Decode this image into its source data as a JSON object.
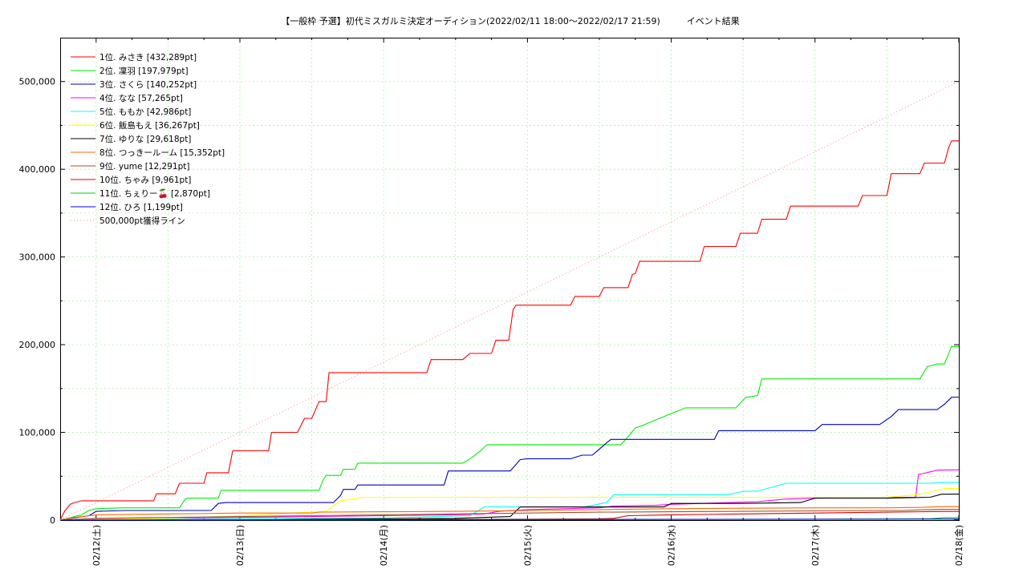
{
  "chart_data": {
    "type": "line",
    "title": "【一般枠 予選】初代ミスガルミ決定オーディション(2022/02/11 18:00～2022/02/17 21:59)　　　イベント結果",
    "xlabel": "",
    "ylabel": "",
    "x_tick_labels": [
      "02/12(土)",
      "02/13(日)",
      "02/14(月)",
      "02/15(火)",
      "02/16(水)",
      "02/17(木)",
      "02/18(金)"
    ],
    "x_range_days": [
      -0.25,
      6.0
    ],
    "ylim": [
      0,
      550000
    ],
    "y_ticks": [
      0,
      100000,
      200000,
      300000,
      400000,
      500000
    ],
    "y_tick_labels": [
      "0",
      "100,000",
      "200,000",
      "300,000",
      "400,000",
      "500,000"
    ],
    "grid": true,
    "legend_position": "top-left",
    "series": [
      {
        "name": " 1位. みさき [432,289pt]",
        "color": "#ff0000",
        "style": "solid",
        "x": [
          -0.25,
          -0.22,
          -0.18,
          -0.15,
          -0.1,
          -0.05,
          0.4,
          0.42,
          0.55,
          0.58,
          0.75,
          0.77,
          0.92,
          0.95,
          1.05,
          1.08,
          1.2,
          1.22,
          1.4,
          1.45,
          1.5,
          1.55,
          1.6,
          1.62,
          1.75,
          1.78,
          1.85,
          1.88,
          2.0,
          2.02,
          2.3,
          2.33,
          2.55,
          2.6,
          2.75,
          2.78,
          2.87,
          2.9,
          2.92,
          2.94,
          3.3,
          3.33,
          3.5,
          3.53,
          3.7,
          3.73,
          3.75,
          3.78,
          4.2,
          4.23,
          4.3,
          4.32,
          4.45,
          4.48,
          4.6,
          4.63,
          4.8,
          4.83,
          5.0,
          5.03,
          5.3,
          5.33,
          5.5,
          5.53,
          5.73,
          5.76,
          5.9,
          5.93,
          5.95,
          6.0
        ],
        "y": [
          0,
          10000,
          18000,
          20000,
          22000,
          22000,
          22000,
          30000,
          30000,
          42000,
          42000,
          54000,
          54000,
          79000,
          79000,
          79000,
          79000,
          100000,
          100000,
          116000,
          116000,
          135000,
          135000,
          168000,
          168000,
          168000,
          168000,
          168000,
          168000,
          168000,
          168000,
          183000,
          183000,
          190000,
          190000,
          205000,
          205000,
          240000,
          245000,
          245000,
          245000,
          255000,
          255000,
          265000,
          265000,
          280000,
          281000,
          295000,
          295000,
          312000,
          312000,
          312000,
          312000,
          327000,
          327000,
          343000,
          343000,
          358000,
          358000,
          358000,
          358000,
          370000,
          370000,
          395000,
          395000,
          407000,
          407000,
          425000,
          432289,
          432289
        ]
      },
      {
        "name": " 2位. 凜羽 [197,979pt]",
        "color": "#00ee00",
        "style": "solid",
        "x": [
          -0.25,
          -0.1,
          -0.05,
          0.0,
          0.2,
          0.58,
          0.62,
          0.64,
          0.85,
          0.87,
          1.0,
          1.2,
          1.55,
          1.58,
          1.6,
          1.7,
          1.72,
          1.8,
          1.82,
          2.0,
          2.2,
          2.55,
          2.62,
          2.68,
          2.72,
          3.0,
          3.2,
          3.4,
          3.65,
          3.7,
          3.75,
          3.8,
          4.1,
          4.2,
          4.45,
          4.52,
          4.6,
          4.63,
          5.0,
          5.2,
          5.5,
          5.73,
          5.78,
          5.85,
          5.9,
          5.95,
          6.0
        ],
        "y": [
          0,
          6000,
          11000,
          13000,
          14000,
          14000,
          24000,
          25000,
          25000,
          34000,
          34000,
          34000,
          34000,
          46000,
          51000,
          51000,
          58000,
          58000,
          65000,
          65000,
          65000,
          65000,
          72000,
          80000,
          86000,
          86000,
          86000,
          86000,
          86000,
          95000,
          105000,
          108000,
          128000,
          128000,
          128000,
          140000,
          142000,
          161000,
          161000,
          161000,
          161000,
          161000,
          175000,
          178000,
          178000,
          198000,
          197979
        ]
      },
      {
        "name": " 3位. さくら [140,252pt]",
        "color": "#0000cc",
        "style": "solid",
        "x": [
          -0.25,
          -0.05,
          0.0,
          0.2,
          0.8,
          0.85,
          0.9,
          1.2,
          1.5,
          1.65,
          1.7,
          1.72,
          1.8,
          1.82,
          2.0,
          2.2,
          2.35,
          2.42,
          2.45,
          2.6,
          2.88,
          2.95,
          3.0,
          3.3,
          3.38,
          3.45,
          3.48,
          3.55,
          3.58,
          4.0,
          4.2,
          4.3,
          4.33,
          4.6,
          4.8,
          5.0,
          5.05,
          5.3,
          5.45,
          5.53,
          5.58,
          5.85,
          5.9,
          5.95,
          6.0
        ],
        "y": [
          0,
          5000,
          10000,
          11000,
          11000,
          19000,
          20000,
          20000,
          20000,
          20000,
          28000,
          35000,
          35000,
          40000,
          40000,
          40000,
          40000,
          40000,
          56000,
          56000,
          56000,
          69000,
          70000,
          70000,
          74000,
          74000,
          78000,
          88000,
          92000,
          92000,
          92000,
          92000,
          102000,
          102000,
          102000,
          102000,
          109000,
          109000,
          109000,
          118000,
          126000,
          126000,
          132000,
          140000,
          140252
        ]
      },
      {
        "name": " 4位. なな [57,265pt]",
        "color": "#ff00ff",
        "style": "solid",
        "x": [
          -0.25,
          0.0,
          0.5,
          1.0,
          1.5,
          2.0,
          2.5,
          2.7,
          2.8,
          3.0,
          3.5,
          3.6,
          3.9,
          4.0,
          4.4,
          4.6,
          4.8,
          5.0,
          5.5,
          5.7,
          5.72,
          5.75,
          5.8,
          5.85,
          6.0
        ],
        "y": [
          0,
          1000,
          2000,
          3000,
          4000,
          5000,
          6000,
          7000,
          10000,
          12000,
          14000,
          16000,
          17000,
          18000,
          20000,
          21000,
          24000,
          25000,
          26000,
          26000,
          52000,
          53000,
          55000,
          57000,
          57265
        ]
      },
      {
        "name": " 5位. ももか [42,986pt]",
        "color": "#00ffff",
        "style": "solid",
        "x": [
          -0.25,
          0.0,
          0.5,
          1.0,
          1.5,
          2.0,
          2.6,
          2.7,
          3.0,
          3.4,
          3.55,
          3.6,
          4.0,
          4.4,
          4.5,
          4.6,
          4.8,
          5.0,
          5.5,
          5.8,
          5.9,
          6.0
        ],
        "y": [
          0,
          0,
          1000,
          1500,
          2000,
          2500,
          5000,
          15000,
          15000,
          15000,
          20000,
          29000,
          29000,
          29000,
          33000,
          33000,
          42000,
          42000,
          42000,
          42000,
          43000,
          42986
        ]
      },
      {
        "name": " 6位. 飯島もえ [36,267pt]",
        "color": "#ffff00",
        "style": "solid",
        "x": [
          -0.25,
          0.5,
          1.0,
          1.6,
          1.7,
          1.85,
          2.0,
          2.5,
          3.0,
          3.5,
          4.0,
          4.5,
          5.0,
          5.5,
          5.7,
          5.8,
          5.9,
          6.0
        ],
        "y": [
          0,
          2000,
          5000,
          10000,
          22000,
          26000,
          26000,
          26000,
          26000,
          26000,
          26000,
          26000,
          26000,
          26000,
          29000,
          32000,
          36000,
          36267
        ]
      },
      {
        "name": " 7位. ゆりな [29,618pt]",
        "color": "#000000",
        "style": "solid",
        "x": [
          -0.25,
          0.5,
          1.0,
          1.5,
          2.0,
          2.5,
          2.88,
          2.95,
          3.5,
          3.95,
          4.0,
          4.5,
          4.9,
          5.0,
          5.5,
          5.8,
          5.88,
          6.0
        ],
        "y": [
          0,
          0,
          0,
          1000,
          1500,
          2000,
          4000,
          15000,
          15000,
          15000,
          19000,
          19000,
          20000,
          25000,
          25000,
          26000,
          29500,
          29618
        ]
      },
      {
        "name": " 8位. つっきールーム [15,352pt]",
        "color": "#ff6600",
        "style": "solid",
        "x": [
          -0.25,
          -0.15,
          0.0,
          0.5,
          1.0,
          1.5,
          1.55,
          2.0,
          2.5,
          3.0,
          3.5,
          4.0,
          4.5,
          5.0,
          5.5,
          5.75,
          5.85,
          6.0
        ],
        "y": [
          0,
          3000,
          6000,
          7000,
          8000,
          8000,
          9000,
          9500,
          10000,
          11000,
          12000,
          13000,
          13500,
          14000,
          14000,
          14500,
          15300,
          15352
        ]
      },
      {
        "name": " 9位. yume [12,291pt]",
        "color": "#a0522d",
        "style": "solid",
        "x": [
          -0.25,
          0.0,
          0.5,
          1.0,
          1.5,
          2.0,
          2.5,
          3.0,
          3.5,
          4.0,
          4.5,
          5.0,
          5.5,
          5.6,
          5.7,
          5.9,
          6.0
        ],
        "y": [
          0,
          2000,
          3000,
          4000,
          5000,
          6000,
          7000,
          8000,
          9000,
          9500,
          10000,
          10500,
          11000,
          11000,
          11500,
          12200,
          12291
        ]
      },
      {
        "name": "10位. ちゃみ [9,961pt]",
        "color": "#dd0000",
        "style": "solid",
        "x": [
          -0.25,
          0.5,
          1.0,
          2.0,
          3.0,
          3.5,
          3.6,
          3.7,
          4.0,
          4.5,
          5.0,
          5.5,
          5.9,
          6.0
        ],
        "y": [
          0,
          0,
          0,
          500,
          1000,
          1500,
          2000,
          5000,
          6000,
          7000,
          8000,
          9000,
          9900,
          9961
        ]
      },
      {
        "name": "11位. ちぇりー🍒 [2,870pt]",
        "color": "#00cc00",
        "style": "solid",
        "x": [
          -0.25,
          1.0,
          2.0,
          3.0,
          4.0,
          5.0,
          5.8,
          5.9,
          6.0
        ],
        "y": [
          0,
          200,
          400,
          600,
          800,
          1000,
          1500,
          2800,
          2870
        ]
      },
      {
        "name": "12位. ひろ [1,199pt]",
        "color": "#0000ff",
        "style": "solid",
        "x": [
          -0.25,
          1.0,
          2.0,
          3.0,
          4.0,
          5.0,
          6.0
        ],
        "y": [
          0,
          200,
          400,
          600,
          800,
          1000,
          1199
        ]
      },
      {
        "name": "500,000pt獲得ライン",
        "color": "#ff8888",
        "style": "dotted",
        "x": [
          -0.25,
          6.0
        ],
        "y": [
          0,
          500000
        ]
      }
    ]
  }
}
